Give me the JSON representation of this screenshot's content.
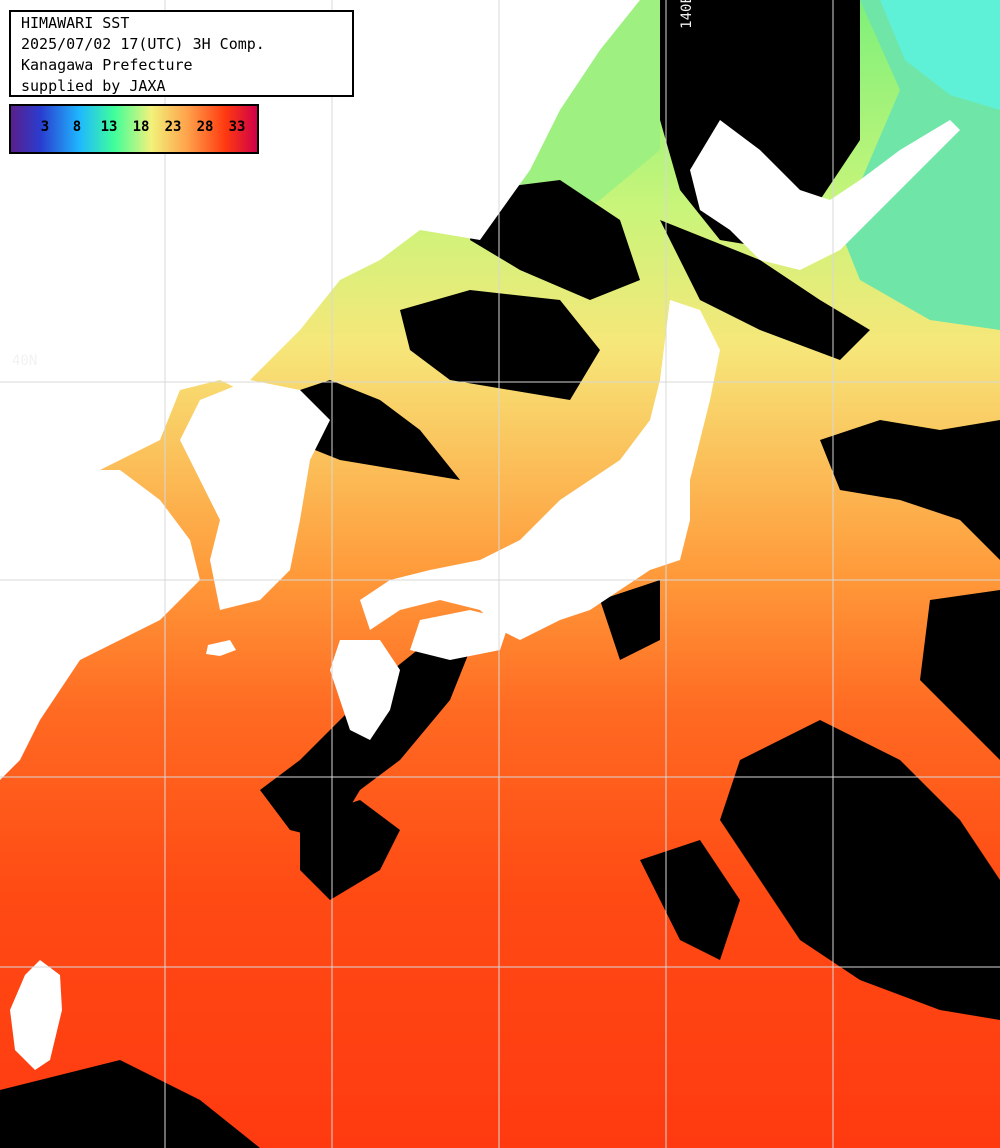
{
  "header": {
    "title": "HIMAWARI SST",
    "datetime": "2025/07/02 17(UTC) 3H Comp.",
    "region": "Kanagawa Prefecture",
    "credit": "supplied by JAXA"
  },
  "legend": {
    "ticks": [
      "3",
      "8",
      "13",
      "18",
      "23",
      "28",
      "33"
    ],
    "colors": [
      "#5a1f8c",
      "#2a3ccf",
      "#1fb8ff",
      "#3fff9a",
      "#f2f27a",
      "#ffa04a",
      "#ff3a10",
      "#d00048"
    ]
  },
  "grid": {
    "lat_labels": [
      "40N"
    ],
    "lon_labels": [
      "140E"
    ]
  },
  "colors": {
    "land": "#ffffff",
    "cloud": "#000000",
    "grid": "#d8d8d8",
    "sst_warm": "#ff4412",
    "sst_mid": "#ff8a2a",
    "sst_cool": "#f4e06a",
    "sst_cold": "#6ef08a"
  }
}
